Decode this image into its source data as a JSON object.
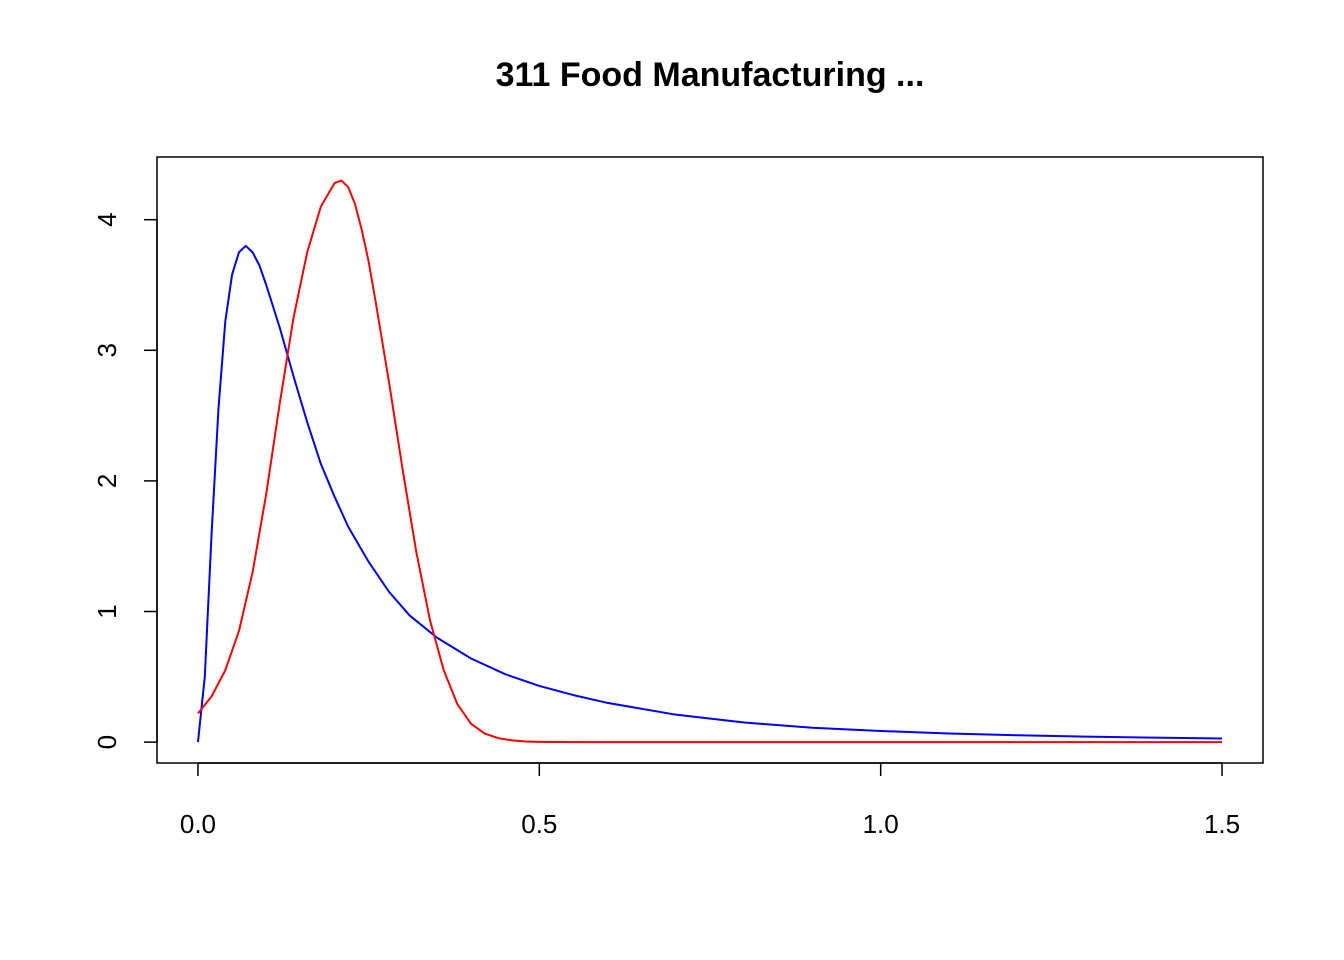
{
  "chart_data": {
    "type": "line",
    "title": "311 Food Manufacturing ...",
    "xlabel": "",
    "ylabel": "",
    "xlim": [
      -0.06,
      1.56
    ],
    "ylim": [
      -0.16,
      4.48
    ],
    "x_ticks": [
      0.0,
      0.5,
      1.0,
      1.5
    ],
    "x_tick_labels": [
      "0.0",
      "0.5",
      "1.0",
      "1.5"
    ],
    "y_ticks": [
      0,
      1,
      2,
      3,
      4
    ],
    "y_tick_labels": [
      "0",
      "1",
      "2",
      "3",
      "4"
    ],
    "grid": false,
    "series": [
      {
        "color": "#0000ff",
        "x": [
          0.0,
          0.01,
          0.02,
          0.03,
          0.04,
          0.05,
          0.06,
          0.07,
          0.08,
          0.09,
          0.1,
          0.12,
          0.14,
          0.16,
          0.18,
          0.2,
          0.22,
          0.25,
          0.28,
          0.31,
          0.35,
          0.4,
          0.45,
          0.5,
          0.55,
          0.6,
          0.7,
          0.8,
          0.9,
          1.0,
          1.1,
          1.2,
          1.3,
          1.4,
          1.5
        ],
        "y": [
          0.0,
          0.5,
          1.6,
          2.55,
          3.22,
          3.58,
          3.75,
          3.8,
          3.75,
          3.65,
          3.5,
          3.17,
          2.8,
          2.45,
          2.13,
          1.88,
          1.65,
          1.38,
          1.15,
          0.97,
          0.8,
          0.64,
          0.52,
          0.43,
          0.36,
          0.3,
          0.21,
          0.15,
          0.11,
          0.085,
          0.066,
          0.052,
          0.042,
          0.034,
          0.028
        ]
      },
      {
        "color": "#ff0000",
        "x": [
          0.0,
          0.02,
          0.04,
          0.06,
          0.08,
          0.1,
          0.12,
          0.14,
          0.16,
          0.18,
          0.2,
          0.21,
          0.22,
          0.23,
          0.24,
          0.25,
          0.26,
          0.28,
          0.3,
          0.32,
          0.34,
          0.36,
          0.38,
          0.4,
          0.42,
          0.44,
          0.46,
          0.48,
          0.5,
          0.53,
          0.56,
          0.6,
          0.65,
          0.7,
          0.8,
          1.0,
          1.5
        ],
        "y": [
          0.22,
          0.35,
          0.55,
          0.85,
          1.3,
          1.9,
          2.6,
          3.25,
          3.75,
          4.1,
          4.28,
          4.3,
          4.25,
          4.12,
          3.92,
          3.68,
          3.38,
          2.75,
          2.08,
          1.45,
          0.93,
          0.55,
          0.29,
          0.14,
          0.065,
          0.03,
          0.013,
          0.005,
          0.002,
          0.0007,
          0.0002,
          0.0,
          0.0,
          0.0,
          0.0,
          0.0,
          0.0
        ]
      }
    ]
  }
}
